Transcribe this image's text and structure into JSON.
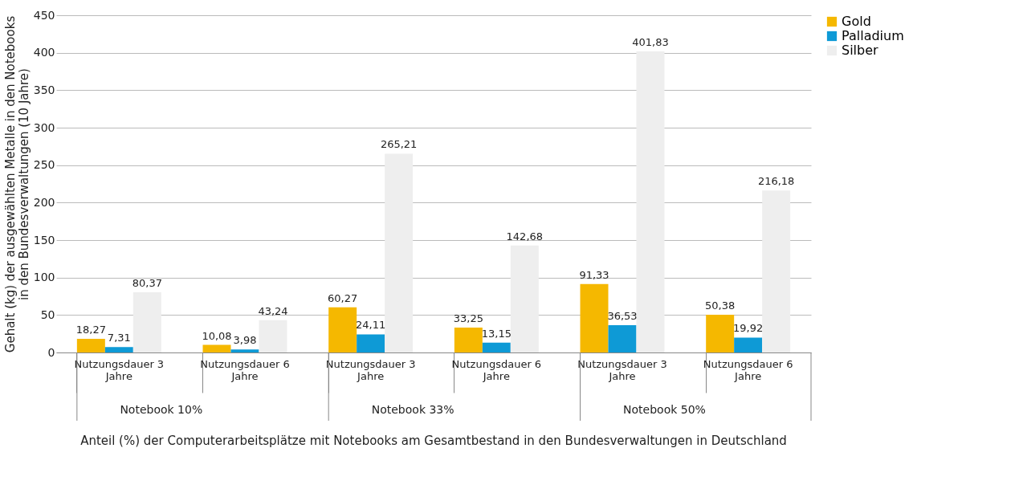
{
  "chart_data": {
    "type": "bar",
    "ylabel": "Gehalt (kg) der ausgewählten Metalle in den Notebooks\nin den Bundesverwaltungen (10 Jahre)",
    "xlabel": "Anteil (%) der Computerarbeitsplätze mit Notebooks am Gesamtbestand in den Bundesverwaltungen in Deutschland",
    "categories": [
      "Nutzungsdauer 3 Jahre",
      "Nutzungsdauer 6 Jahre",
      "Nutzungsdauer 3 Jahre",
      "Nutzungsdauer 6 Jahre",
      "Nutzungsdauer 3 Jahre",
      "Nutzungsdauer 6 Jahre"
    ],
    "annotations": [
      "Notebook 10%",
      "Notebook 33%",
      "Notebook 50%"
    ],
    "series": [
      {
        "name": "Gold",
        "color": "#f5b800",
        "values": [
          18.27,
          10.08,
          60.27,
          33.25,
          91.33,
          50.38
        ],
        "value_labels": [
          "18,27",
          "10,08",
          "60,27",
          "33,25",
          "91,33",
          "50,38"
        ]
      },
      {
        "name": "Palladium",
        "color": "#0e9ad6",
        "values": [
          7.31,
          3.98,
          24.11,
          13.15,
          36.53,
          19.92
        ],
        "value_labels": [
          "7,31",
          "3,98",
          "24,11",
          "13,15",
          "36,53",
          "19,92"
        ]
      },
      {
        "name": "Silber",
        "color": "#eeeeee",
        "values": [
          80.37,
          43.24,
          265.21,
          142.68,
          401.83,
          216.18
        ],
        "value_labels": [
          "80,37",
          "43,24",
          "265,21",
          "142,68",
          "401,83",
          "216,18"
        ]
      }
    ],
    "ylim": [
      0,
      450
    ],
    "yticks": [
      0,
      50,
      100,
      150,
      200,
      250,
      300,
      350,
      400,
      450
    ],
    "grid": "y",
    "legend": "right"
  }
}
